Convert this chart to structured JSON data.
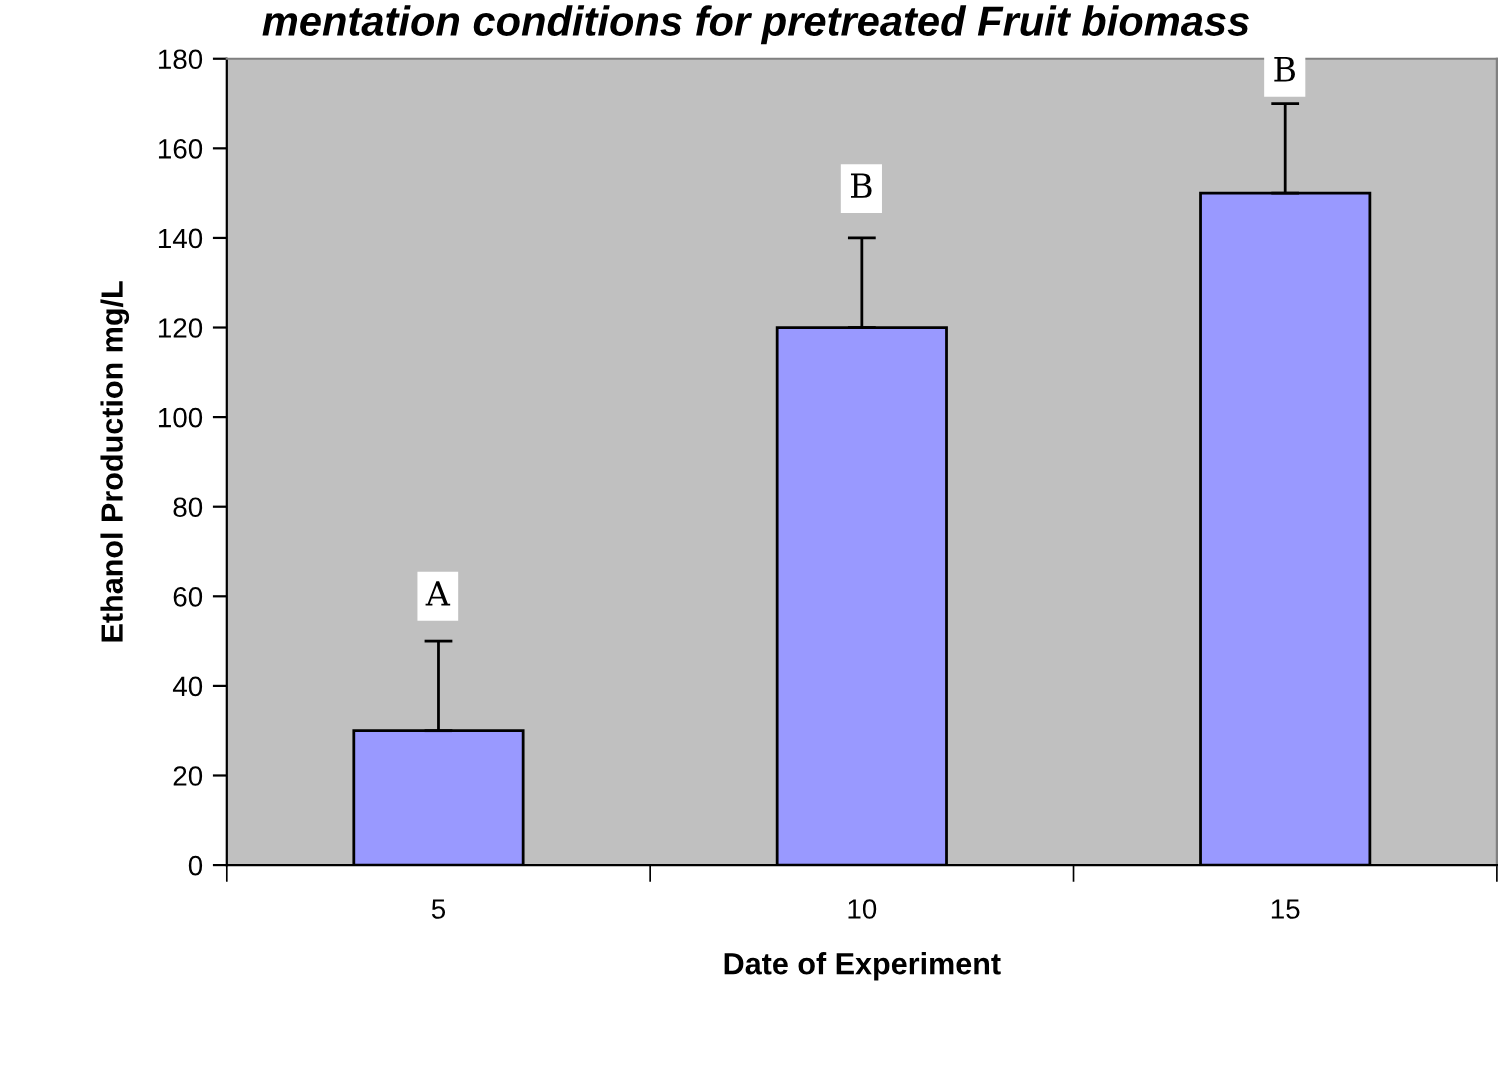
{
  "chart_data": {
    "type": "bar",
    "title": "mentation conditions for pretreated Fruit biomass",
    "xlabel": "Date of Experiment",
    "ylabel": "Ethanol Production mg/L",
    "categories": [
      "5",
      "10",
      "15"
    ],
    "series": [
      {
        "color": "#9999ff",
        "values": [
          30,
          120,
          150
        ],
        "errors": [
          [
            30,
            50
          ],
          [
            120,
            140
          ],
          [
            150,
            170
          ]
        ]
      }
    ],
    "ylim": [
      0,
      180
    ],
    "yticks": [
      0,
      20,
      40,
      60,
      80,
      100,
      120,
      140,
      160,
      180
    ],
    "grid": false,
    "legend": false,
    "annotations": [
      {
        "text": "A",
        "x": "5",
        "y": 60
      },
      {
        "text": "B",
        "x": "10",
        "y": 151
      },
      {
        "text": "B",
        "x": "15",
        "y": 177
      }
    ]
  }
}
